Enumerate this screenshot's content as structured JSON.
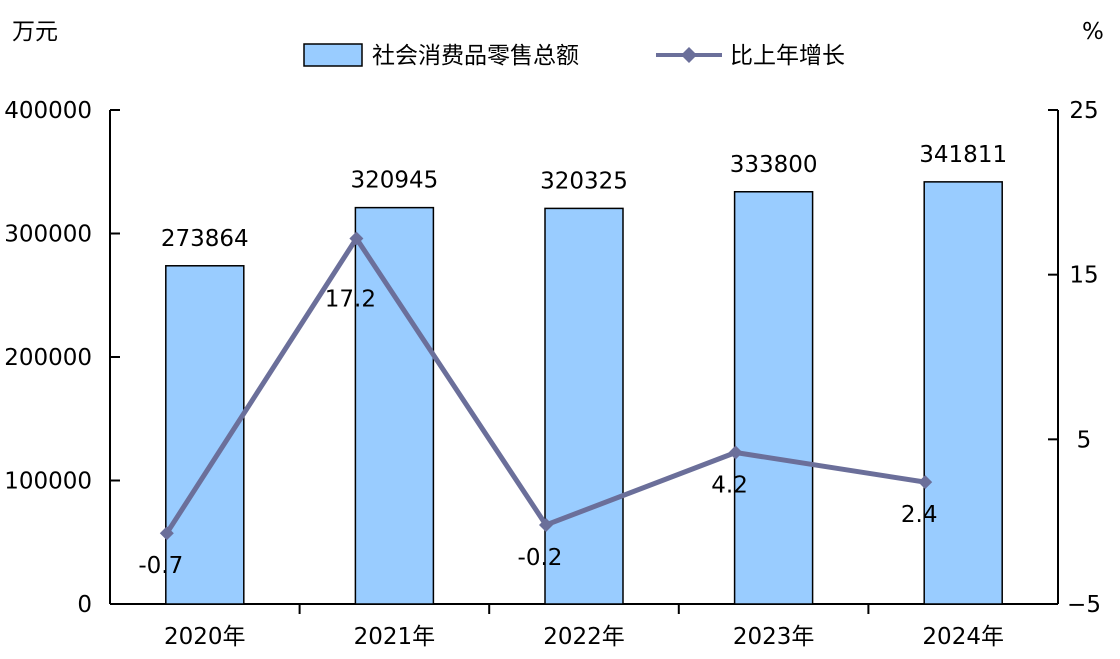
{
  "chart_data": {
    "type": "bar",
    "title": "",
    "xlabel": "",
    "ylabel": "万元",
    "y2label": "%",
    "categories": [
      "2020年",
      "2021年",
      "2022年",
      "2023年",
      "2024年"
    ],
    "ylim": [
      0,
      400000
    ],
    "y2lim": [
      -5,
      25
    ],
    "y_ticks": [
      0,
      100000,
      200000,
      300000,
      400000
    ],
    "y2_ticks": [
      -5,
      5,
      15,
      25
    ],
    "grid": false,
    "legend_position": "top",
    "series": [
      {
        "name": "社会消费品零售总额",
        "type": "bar",
        "axis": "left",
        "values": [
          273864,
          320945,
          320325,
          333800,
          341811
        ],
        "labels": [
          "273864",
          "320945",
          "320325",
          "333800",
          "341811"
        ],
        "color": "#99ccff"
      },
      {
        "name": "比上年增长",
        "type": "line",
        "axis": "right",
        "values": [
          -0.7,
          17.2,
          -0.2,
          4.2,
          2.4
        ],
        "labels": [
          "-0.7",
          "17.2",
          "-0.2",
          "4.2",
          "2.4"
        ],
        "color": "#6b6f9a"
      }
    ]
  }
}
